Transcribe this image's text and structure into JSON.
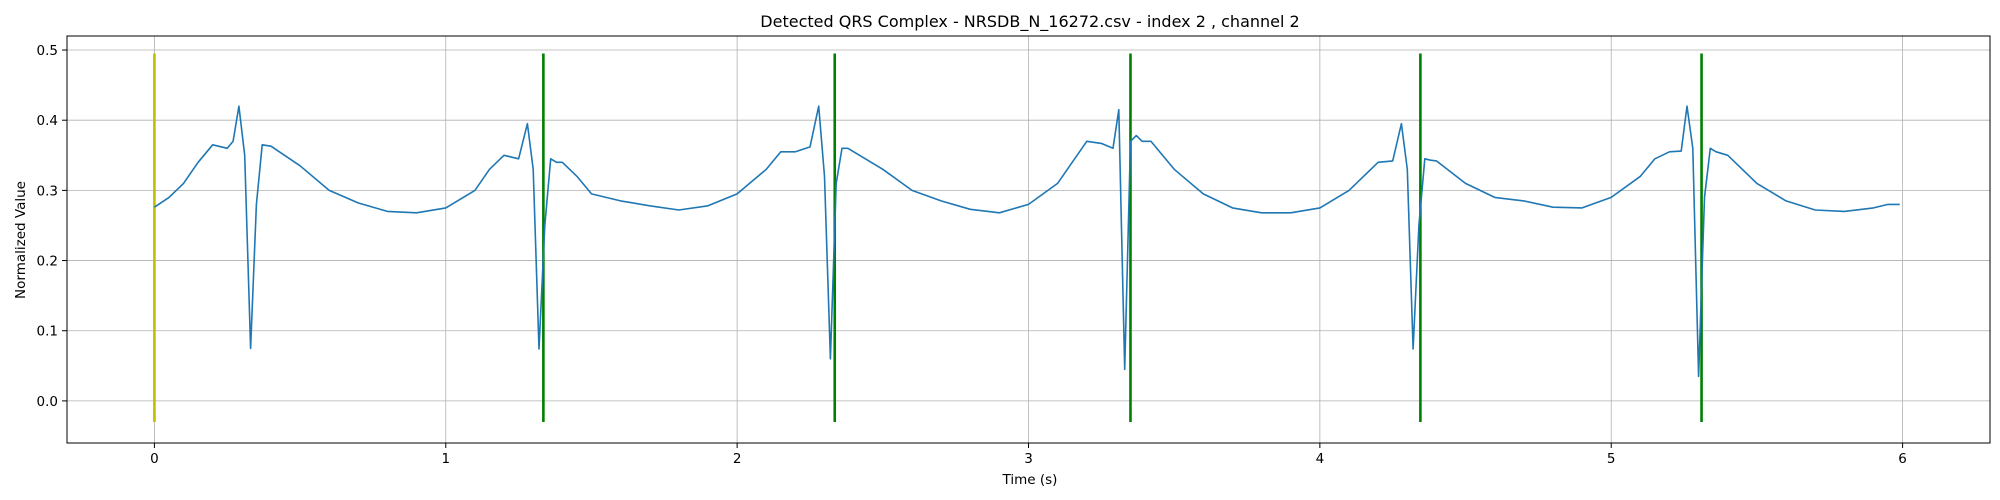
{
  "chart_data": {
    "type": "line",
    "title": "Detected QRS Complex - NRSDB_N_16272.csv - index 2 , channel 2",
    "xlabel": "Time (s)",
    "ylabel": "Normalized Value",
    "xlim": [
      -0.3,
      6.3
    ],
    "ylim": [
      -0.06,
      0.52
    ],
    "xticks": [
      0,
      1,
      2,
      3,
      4,
      5,
      6
    ],
    "yticks": [
      0.0,
      0.1,
      0.2,
      0.3,
      0.4,
      0.5
    ],
    "xtick_labels": [
      "0",
      "1",
      "2",
      "3",
      "4",
      "5",
      "6"
    ],
    "ytick_labels": [
      "0.0",
      "0.1",
      "0.2",
      "0.3",
      "0.4",
      "0.5"
    ],
    "grid": true,
    "signal": {
      "color": "#1f77b4",
      "x": [
        0.0,
        0.05,
        0.1,
        0.15,
        0.2,
        0.25,
        0.27,
        0.29,
        0.31,
        0.33,
        0.35,
        0.37,
        0.4,
        0.5,
        0.6,
        0.7,
        0.8,
        0.9,
        1.0,
        1.1,
        1.15,
        1.2,
        1.25,
        1.28,
        1.3,
        1.32,
        1.34,
        1.36,
        1.38,
        1.4,
        1.45,
        1.5,
        1.6,
        1.7,
        1.8,
        1.9,
        2.0,
        2.1,
        2.15,
        2.2,
        2.25,
        2.28,
        2.3,
        2.32,
        2.34,
        2.36,
        2.38,
        2.4,
        2.5,
        2.6,
        2.7,
        2.8,
        2.9,
        3.0,
        3.1,
        3.15,
        3.2,
        3.25,
        3.29,
        3.31,
        3.33,
        3.35,
        3.37,
        3.39,
        3.42,
        3.5,
        3.6,
        3.7,
        3.8,
        3.9,
        4.0,
        4.1,
        4.15,
        4.2,
        4.25,
        4.28,
        4.3,
        4.32,
        4.34,
        4.36,
        4.38,
        4.4,
        4.5,
        4.6,
        4.7,
        4.8,
        4.9,
        5.0,
        5.1,
        5.15,
        5.2,
        5.24,
        5.26,
        5.28,
        5.3,
        5.32,
        5.34,
        5.36,
        5.4,
        5.5,
        5.6,
        5.7,
        5.8,
        5.9,
        5.95,
        5.99
      ],
      "y": [
        0.276,
        0.29,
        0.31,
        0.34,
        0.365,
        0.36,
        0.37,
        0.42,
        0.35,
        0.075,
        0.28,
        0.365,
        0.363,
        0.335,
        0.3,
        0.282,
        0.27,
        0.268,
        0.275,
        0.3,
        0.33,
        0.35,
        0.345,
        0.395,
        0.33,
        0.074,
        0.25,
        0.345,
        0.34,
        0.34,
        0.32,
        0.295,
        0.285,
        0.278,
        0.272,
        0.278,
        0.295,
        0.33,
        0.355,
        0.355,
        0.362,
        0.42,
        0.32,
        0.06,
        0.31,
        0.36,
        0.36,
        0.355,
        0.33,
        0.3,
        0.285,
        0.273,
        0.268,
        0.28,
        0.31,
        0.34,
        0.37,
        0.367,
        0.36,
        0.415,
        0.045,
        0.37,
        0.378,
        0.37,
        0.37,
        0.33,
        0.295,
        0.275,
        0.268,
        0.268,
        0.275,
        0.3,
        0.32,
        0.34,
        0.342,
        0.395,
        0.33,
        0.074,
        0.25,
        0.345,
        0.343,
        0.342,
        0.31,
        0.29,
        0.285,
        0.276,
        0.275,
        0.29,
        0.32,
        0.345,
        0.355,
        0.356,
        0.42,
        0.36,
        0.035,
        0.29,
        0.36,
        0.355,
        0.35,
        0.31,
        0.285,
        0.272,
        0.27,
        0.275,
        0.28,
        0.28
      ]
    },
    "detections": [
      {
        "x": 0.0,
        "color": "#bfbf00",
        "y_range": [
          -0.03,
          0.495
        ]
      },
      {
        "x": 1.335,
        "color": "#008000",
        "y_range": [
          -0.03,
          0.495
        ]
      },
      {
        "x": 2.335,
        "color": "#008000",
        "y_range": [
          -0.03,
          0.495
        ]
      },
      {
        "x": 3.35,
        "color": "#008000",
        "y_range": [
          -0.03,
          0.495
        ]
      },
      {
        "x": 4.345,
        "color": "#008000",
        "y_range": [
          -0.03,
          0.495
        ]
      },
      {
        "x": 5.31,
        "color": "#008000",
        "y_range": [
          -0.03,
          0.495
        ]
      }
    ]
  }
}
